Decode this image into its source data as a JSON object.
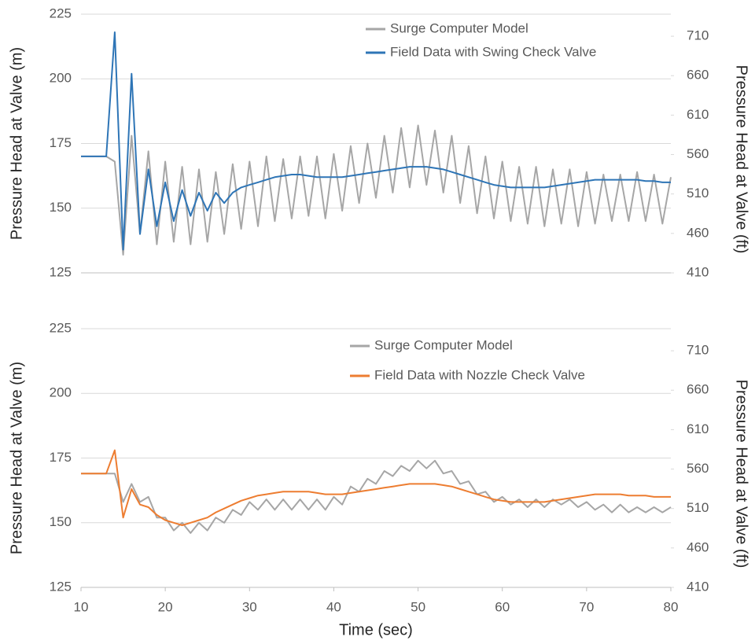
{
  "chart_data": [
    {
      "type": "line",
      "y_label": "Pressure Head at Valve (m)",
      "y2_label": "Pressure Head at Valve (ft)",
      "x": [
        10,
        11,
        12,
        13,
        14,
        15,
        16,
        17,
        18,
        19,
        20,
        21,
        22,
        23,
        24,
        25,
        26,
        27,
        28,
        29,
        30,
        31,
        32,
        33,
        34,
        35,
        36,
        37,
        38,
        39,
        40,
        41,
        42,
        43,
        44,
        45,
        46,
        47,
        48,
        49,
        50,
        51,
        52,
        53,
        54,
        55,
        56,
        57,
        58,
        59,
        60,
        61,
        62,
        63,
        64,
        65,
        66,
        67,
        68,
        69,
        70,
        71,
        72,
        73,
        74,
        75,
        76,
        77,
        78,
        79,
        80
      ],
      "series": [
        {
          "name": "Surge Computer Model",
          "color": "#a6a6a6",
          "values": [
            170,
            170,
            170,
            170,
            168,
            132,
            178,
            140,
            172,
            136,
            168,
            137,
            166,
            136,
            165,
            137,
            164,
            140,
            167,
            142,
            168,
            143,
            170,
            145,
            169,
            146,
            170,
            147,
            170,
            146,
            171,
            149,
            174,
            152,
            175,
            154,
            178,
            156,
            181,
            158,
            182,
            159,
            180,
            156,
            178,
            152,
            174,
            148,
            170,
            146,
            168,
            145,
            166,
            144,
            166,
            143,
            165,
            144,
            165,
            143,
            164,
            144,
            163,
            145,
            163,
            145,
            164,
            145,
            163,
            144,
            162
          ]
        },
        {
          "name": "Field Data with Swing Check Valve",
          "color": "#2e75b6",
          "values": [
            170,
            170,
            170,
            170,
            218,
            134,
            202,
            140,
            165,
            143,
            160,
            145,
            157,
            147,
            156,
            149,
            156,
            152,
            156,
            158,
            159,
            160,
            161,
            162,
            162.5,
            163,
            163,
            162.5,
            162,
            162,
            162,
            162,
            162.5,
            163,
            163.5,
            164,
            164.5,
            165,
            165.5,
            166,
            166,
            166,
            165.5,
            165,
            164,
            163,
            162,
            161,
            160,
            159,
            158.5,
            158,
            158,
            158,
            158,
            158,
            158.5,
            159,
            159.5,
            160,
            160.5,
            161,
            161,
            161,
            161,
            161,
            161,
            160.5,
            160.5,
            160,
            160
          ]
        }
      ],
      "xlim": [
        10,
        80
      ],
      "ylim": [
        125,
        225
      ],
      "yticks": [
        125,
        150,
        175,
        200,
        225
      ],
      "y2lim": [
        410,
        738
      ],
      "y2ticks": [
        410,
        460,
        510,
        560,
        610,
        660,
        710
      ],
      "grid": true
    },
    {
      "type": "line",
      "x_label": "Time (sec)",
      "y_label": "Pressure Head at Valve (m)",
      "y2_label": "Pressure Head at Valve (ft)",
      "x": [
        10,
        11,
        12,
        13,
        14,
        15,
        16,
        17,
        18,
        19,
        20,
        21,
        22,
        23,
        24,
        25,
        26,
        27,
        28,
        29,
        30,
        31,
        32,
        33,
        34,
        35,
        36,
        37,
        38,
        39,
        40,
        41,
        42,
        43,
        44,
        45,
        46,
        47,
        48,
        49,
        50,
        51,
        52,
        53,
        54,
        55,
        56,
        57,
        58,
        59,
        60,
        61,
        62,
        63,
        64,
        65,
        66,
        67,
        68,
        69,
        70,
        71,
        72,
        73,
        74,
        75,
        76,
        77,
        78,
        79,
        80
      ],
      "series": [
        {
          "name": "Surge Computer Model",
          "color": "#a6a6a6",
          "values": [
            169,
            169,
            169,
            169,
            169,
            158,
            165,
            158,
            160,
            152,
            152,
            147,
            150,
            146,
            150,
            147,
            152,
            150,
            155,
            153,
            158,
            155,
            159,
            155,
            159,
            155,
            159,
            155,
            159,
            155,
            160,
            157,
            164,
            162,
            167,
            165,
            170,
            168,
            172,
            170,
            174,
            171,
            174,
            169,
            170,
            165,
            166,
            161,
            162,
            158,
            160,
            157,
            159,
            156,
            159,
            156,
            159,
            157,
            159,
            156,
            158,
            155,
            157,
            154,
            157,
            154,
            156,
            154,
            156,
            154,
            156
          ]
        },
        {
          "name": "Field Data with Nozzle Check Valve",
          "color": "#ed7d31",
          "values": [
            169,
            169,
            169,
            169,
            178,
            152,
            163,
            157,
            156,
            153,
            151,
            150,
            149,
            150,
            151,
            152,
            154,
            155.5,
            157,
            158.5,
            159.5,
            160.5,
            161,
            161.5,
            162,
            162,
            162,
            162,
            161.5,
            161,
            161,
            161,
            161.5,
            162,
            162.5,
            163,
            163.5,
            164,
            164.5,
            165,
            165,
            165,
            165,
            164.5,
            164,
            163,
            162,
            161,
            160,
            159,
            158.5,
            158,
            158,
            158,
            158,
            158,
            158.5,
            159,
            159.5,
            160,
            160.5,
            161,
            161,
            161,
            161,
            160.5,
            160.5,
            160.5,
            160,
            160,
            160
          ]
        }
      ],
      "xlim": [
        10,
        80
      ],
      "xticks": [
        10,
        20,
        30,
        40,
        50,
        60,
        70,
        80
      ],
      "ylim": [
        125,
        225
      ],
      "yticks": [
        125,
        150,
        175,
        200,
        225
      ],
      "y2lim": [
        410,
        738
      ],
      "y2ticks": [
        410,
        460,
        510,
        560,
        610,
        660,
        710
      ],
      "grid": true
    }
  ]
}
